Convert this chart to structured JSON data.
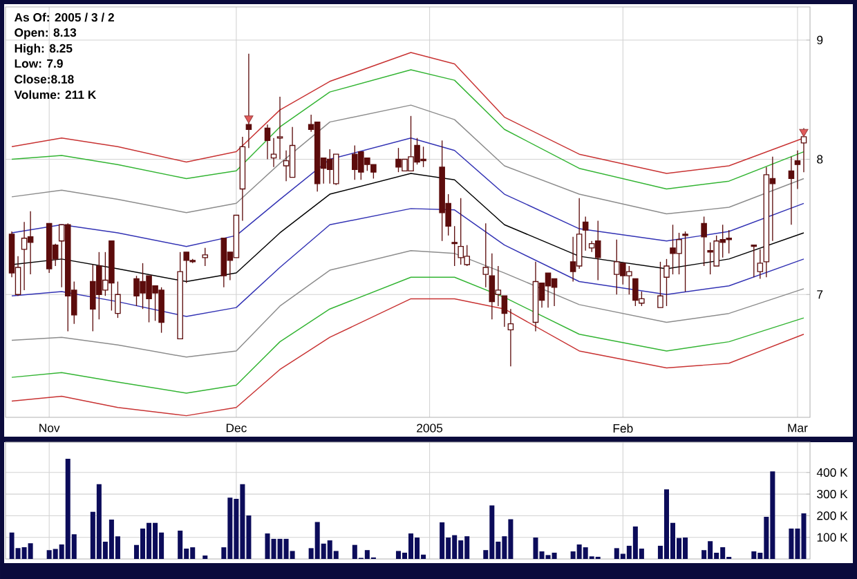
{
  "chart_data": [
    {
      "type": "candlestick",
      "log": "y",
      "grid": true,
      "xlim": [
        "2004-10-25",
        "2005-03-03"
      ],
      "xticks": [
        {
          "value": "2004-11-01",
          "label": "Nov"
        },
        {
          "value": "2004-12-01",
          "label": "Dec"
        },
        {
          "value": "2005-01-01",
          "label": "2005"
        },
        {
          "value": "2005-02-01",
          "label": "Feb"
        },
        {
          "value": "2005-03-01",
          "label": "Mar"
        }
      ],
      "ylim": [
        6.2,
        9.3
      ],
      "yticks": [
        7,
        8,
        9
      ],
      "annotations": [
        "As Of: 2005 / 3 / 2",
        "Open: 8.13",
        "High: 8.25",
        "Low: 7.9",
        "Close:8.18",
        "Volume: 211 K"
      ],
      "series": [
        {
          "type": "line",
          "color": "#c83232",
          "x": [
            "2004-10-26",
            "2004-11-03",
            "2004-11-12",
            "2004-11-23",
            "2004-12-01",
            "2004-12-08",
            "2004-12-16",
            "2004-12-29",
            "2005-01-05",
            "2005-01-13",
            "2005-01-25",
            "2005-02-08",
            "2005-02-18",
            "2005-03-02"
          ],
          "values": [
            8.1,
            8.17,
            8.1,
            7.98,
            8.06,
            8.4,
            8.64,
            8.89,
            8.79,
            8.34,
            8.04,
            7.89,
            7.95,
            8.17
          ]
        },
        {
          "type": "line",
          "color": "#32b432",
          "x": [
            "2004-10-26",
            "2004-11-03",
            "2004-11-12",
            "2004-11-23",
            "2004-12-01",
            "2004-12-08",
            "2004-12-16",
            "2004-12-29",
            "2005-01-05",
            "2005-01-13",
            "2005-01-25",
            "2005-02-08",
            "2005-02-18",
            "2005-03-02"
          ],
          "values": [
            8.0,
            8.03,
            7.96,
            7.85,
            7.91,
            8.26,
            8.55,
            8.74,
            8.65,
            8.24,
            7.93,
            7.77,
            7.83,
            8.06
          ]
        },
        {
          "type": "line",
          "color": "#8c8c8c",
          "x": [
            "2004-10-26",
            "2004-11-03",
            "2004-11-12",
            "2004-11-23",
            "2004-12-01",
            "2004-12-08",
            "2004-12-16",
            "2004-12-29",
            "2005-01-05",
            "2005-01-13",
            "2005-01-25",
            "2005-02-08",
            "2005-02-18",
            "2005-03-02"
          ],
          "values": [
            7.71,
            7.76,
            7.69,
            7.59,
            7.66,
            7.97,
            8.3,
            8.44,
            8.32,
            7.95,
            7.73,
            7.58,
            7.63,
            7.85
          ]
        },
        {
          "type": "line",
          "color": "#3232b4",
          "x": [
            "2004-10-26",
            "2004-11-03",
            "2004-11-12",
            "2004-11-23",
            "2004-12-01",
            "2004-12-08",
            "2004-12-16",
            "2004-12-29",
            "2005-01-05",
            "2005-01-13",
            "2005-01-25",
            "2005-02-08",
            "2005-02-18",
            "2005-03-02"
          ],
          "values": [
            7.44,
            7.5,
            7.44,
            7.34,
            7.42,
            7.69,
            8.0,
            8.17,
            8.07,
            7.73,
            7.47,
            7.38,
            7.45,
            7.66
          ]
        },
        {
          "type": "line",
          "color": "#000000",
          "x": [
            "2004-10-26",
            "2004-11-03",
            "2004-11-12",
            "2004-11-23",
            "2004-12-01",
            "2004-12-08",
            "2004-12-16",
            "2004-12-29",
            "2005-01-05",
            "2005-01-13",
            "2005-01-25",
            "2005-02-08",
            "2005-02-18",
            "2005-03-02"
          ],
          "values": [
            7.21,
            7.25,
            7.18,
            7.09,
            7.15,
            7.44,
            7.73,
            7.89,
            7.84,
            7.5,
            7.27,
            7.18,
            7.25,
            7.44
          ]
        },
        {
          "type": "line",
          "color": "#3232b4",
          "x": [
            "2004-10-26",
            "2004-11-03",
            "2004-11-12",
            "2004-11-23",
            "2004-12-01",
            "2004-12-08",
            "2004-12-16",
            "2004-12-29",
            "2005-01-05",
            "2005-01-13",
            "2005-01-25",
            "2005-02-08",
            "2005-02-18",
            "2005-03-02"
          ],
          "values": [
            6.99,
            7.02,
            6.95,
            6.85,
            6.91,
            7.19,
            7.5,
            7.62,
            7.61,
            7.35,
            7.09,
            7.0,
            7.06,
            7.25
          ]
        },
        {
          "type": "line",
          "color": "#8c8c8c",
          "x": [
            "2004-10-26",
            "2004-11-03",
            "2004-11-12",
            "2004-11-23",
            "2004-12-01",
            "2004-12-08",
            "2004-12-16",
            "2004-12-29",
            "2005-01-05",
            "2005-01-13",
            "2005-01-25",
            "2005-02-08",
            "2005-02-18",
            "2005-03-02"
          ],
          "values": [
            6.69,
            6.71,
            6.66,
            6.58,
            6.62,
            6.92,
            7.17,
            7.31,
            7.29,
            7.15,
            6.93,
            6.81,
            6.87,
            7.04
          ]
        },
        {
          "type": "line",
          "color": "#32b432",
          "x": [
            "2004-10-26",
            "2004-11-03",
            "2004-11-12",
            "2004-11-23",
            "2004-12-01",
            "2004-12-08",
            "2004-12-16",
            "2004-12-29",
            "2005-01-05",
            "2005-01-13",
            "2005-01-25",
            "2005-02-08",
            "2005-02-18",
            "2005-03-02"
          ],
          "values": [
            6.45,
            6.48,
            6.42,
            6.35,
            6.4,
            6.68,
            6.9,
            7.12,
            7.12,
            6.98,
            6.73,
            6.62,
            6.68,
            6.84
          ]
        },
        {
          "type": "line",
          "color": "#c83232",
          "x": [
            "2004-10-26",
            "2004-11-03",
            "2004-11-12",
            "2004-11-23",
            "2004-12-01",
            "2004-12-08",
            "2004-12-16",
            "2004-12-29",
            "2005-01-05",
            "2005-01-13",
            "2005-01-25",
            "2005-02-08",
            "2005-02-18",
            "2005-03-02"
          ],
          "values": [
            6.3,
            6.33,
            6.26,
            6.21,
            6.26,
            6.5,
            6.71,
            6.97,
            6.97,
            6.9,
            6.62,
            6.51,
            6.54,
            6.73
          ]
        },
        {
          "type": "scatter",
          "color": "#e05a5a",
          "marker": "triangle",
          "x": [
            "2004-12-03",
            "2005-03-02"
          ],
          "values": [
            8.33,
            8.22
          ]
        },
        {
          "type": "candlestick",
          "color": "#5c0c0c",
          "x": [
            "2004-10-26",
            "2004-10-27",
            "2004-10-28",
            "2004-10-29",
            "2004-11-01",
            "2004-11-02",
            "2004-11-03",
            "2004-11-04",
            "2004-11-05",
            "2004-11-08",
            "2004-11-09",
            "2004-11-10",
            "2004-11-11",
            "2004-11-12",
            "2004-11-15",
            "2004-11-16",
            "2004-11-17",
            "2004-11-18",
            "2004-11-19",
            "2004-11-22",
            "2004-11-23",
            "2004-11-24",
            "2004-11-26",
            "2004-11-29",
            "2004-11-30",
            "2004-12-01",
            "2004-12-02",
            "2004-12-03",
            "2004-12-06",
            "2004-12-07",
            "2004-12-08",
            "2004-12-09",
            "2004-12-10",
            "2004-12-13",
            "2004-12-14",
            "2004-12-15",
            "2004-12-16",
            "2004-12-17",
            "2004-12-20",
            "2004-12-21",
            "2004-12-22",
            "2004-12-23",
            "2004-12-27",
            "2004-12-28",
            "2004-12-29",
            "2004-12-30",
            "2004-12-31",
            "2005-01-03",
            "2005-01-04",
            "2005-01-05",
            "2005-01-06",
            "2005-01-07",
            "2005-01-10",
            "2005-01-11",
            "2005-01-12",
            "2005-01-13",
            "2005-01-14",
            "2005-01-18",
            "2005-01-19",
            "2005-01-20",
            "2005-01-21",
            "2005-01-24",
            "2005-01-25",
            "2005-01-26",
            "2005-01-27",
            "2005-01-28",
            "2005-01-31",
            "2005-02-01",
            "2005-02-02",
            "2005-02-03",
            "2005-02-04",
            "2005-02-07",
            "2005-02-08",
            "2005-02-09",
            "2005-02-10",
            "2005-02-11",
            "2005-02-14",
            "2005-02-15",
            "2005-02-16",
            "2005-02-17",
            "2005-02-18",
            "2005-02-22",
            "2005-02-23",
            "2005-02-24",
            "2005-02-25",
            "2005-02-28",
            "2005-03-01",
            "2005-03-02"
          ],
          "ohlc": [
            [
              7.43,
              7.45,
              7.12,
              7.15
            ],
            [
              7.0,
              7.27,
              6.99,
              7.19
            ],
            [
              7.32,
              7.52,
              7.03,
              7.4
            ],
            [
              7.41,
              7.6,
              7.14,
              7.37
            ],
            [
              7.51,
              7.51,
              7.15,
              7.18
            ],
            [
              7.35,
              7.36,
              7.2,
              7.25
            ],
            [
              7.38,
              7.5,
              7.05,
              7.5
            ],
            [
              7.5,
              7.51,
              6.75,
              6.99
            ],
            [
              7.03,
              7.09,
              6.8,
              6.86
            ],
            [
              7.09,
              7.21,
              6.75,
              6.9
            ],
            [
              7.2,
              7.3,
              6.83,
              7.0
            ],
            [
              7.03,
              7.3,
              6.99,
              7.1
            ],
            [
              7.38,
              7.38,
              6.89,
              7.08
            ],
            [
              6.87,
              7.09,
              6.84,
              7.0
            ],
            [
              7.11,
              7.13,
              6.92,
              6.99
            ],
            [
              7.09,
              7.22,
              6.9,
              7.01
            ],
            [
              7.13,
              7.13,
              6.81,
              6.97
            ],
            [
              7.06,
              7.06,
              6.82,
              7.01
            ],
            [
              7.03,
              7.05,
              6.74,
              6.81
            ],
            [
              6.7,
              7.3,
              6.7,
              7.16
            ],
            [
              7.3,
              7.3,
              7.08,
              7.24
            ],
            [
              7.24,
              7.25,
              7.22,
              7.23
            ],
            [
              7.26,
              7.33,
              7.2,
              7.28
            ],
            [
              7.4,
              7.4,
              7.05,
              7.13
            ],
            [
              7.3,
              7.3,
              7.1,
              7.24
            ],
            [
              7.26,
              7.57,
              7.26,
              7.57
            ],
            [
              7.77,
              8.18,
              7.53,
              8.1
            ],
            [
              8.28,
              8.88,
              8.09,
              8.24
            ],
            [
              8.25,
              8.28,
              8.0,
              8.15
            ],
            [
              8.01,
              8.17,
              7.94,
              8.04
            ],
            [
              8.17,
              8.51,
              8.0,
              8.18
            ],
            [
              7.95,
              8.07,
              7.83,
              7.99
            ],
            [
              7.86,
              8.26,
              7.86,
              8.11
            ],
            [
              8.28,
              8.36,
              8.22,
              8.24
            ],
            [
              8.3,
              8.3,
              7.75,
              7.81
            ],
            [
              8.01,
              8.01,
              7.81,
              7.93
            ],
            [
              8.0,
              8.08,
              7.81,
              7.92
            ],
            [
              7.81,
              8.04,
              7.8,
              8.04
            ],
            [
              8.04,
              8.11,
              7.84,
              7.92
            ],
            [
              8.06,
              8.06,
              7.84,
              7.9
            ],
            [
              8.01,
              8.01,
              7.91,
              7.96
            ],
            [
              7.96,
              7.96,
              7.85,
              7.9
            ],
            [
              8.0,
              8.09,
              7.9,
              7.94
            ],
            [
              7.91,
              8.0,
              7.91,
              8.0
            ],
            [
              7.91,
              8.35,
              7.91,
              8.02
            ],
            [
              8.11,
              8.17,
              7.96,
              7.98
            ],
            [
              8.0,
              8.1,
              7.94,
              7.99
            ],
            [
              7.94,
              8.15,
              7.38,
              7.59
            ],
            [
              7.66,
              7.73,
              7.42,
              7.49
            ],
            [
              7.37,
              7.49,
              7.2,
              7.36
            ],
            [
              7.26,
              7.7,
              7.21,
              7.34
            ],
            [
              7.21,
              7.35,
              7.2,
              7.27
            ],
            [
              7.14,
              7.51,
              7.05,
              7.19
            ],
            [
              7.13,
              7.29,
              6.83,
              6.95
            ],
            [
              7.0,
              7.2,
              6.92,
              7.03
            ],
            [
              6.99,
              6.99,
              6.78,
              6.87
            ],
            [
              6.76,
              6.9,
              6.52,
              6.8
            ],
            [
              6.81,
              7.23,
              6.75,
              7.09
            ],
            [
              7.08,
              7.08,
              6.91,
              6.96
            ],
            [
              7.15,
              7.15,
              6.91,
              7.06
            ],
            [
              7.11,
              7.11,
              6.92,
              7.05
            ],
            [
              7.23,
              7.41,
              7.09,
              7.16
            ],
            [
              7.2,
              7.7,
              7.18,
              7.43
            ],
            [
              7.52,
              7.56,
              7.31,
              7.46
            ],
            [
              7.33,
              7.38,
              7.3,
              7.36
            ],
            [
              7.38,
              7.53,
              7.1,
              7.26
            ],
            [
              7.14,
              7.39,
              7.0,
              7.23
            ],
            [
              7.22,
              7.22,
              7.07,
              7.13
            ],
            [
              7.13,
              7.2,
              7.0,
              7.16
            ],
            [
              7.11,
              7.11,
              6.92,
              6.96
            ],
            [
              6.94,
              7.02,
              6.92,
              6.97
            ],
            [
              6.91,
              7.23,
              6.91,
              6.99
            ],
            [
              7.12,
              7.25,
              6.92,
              7.2
            ],
            [
              7.33,
              7.5,
              7.14,
              7.29
            ],
            [
              7.29,
              7.44,
              7.14,
              7.39
            ],
            [
              7.43,
              7.45,
              7.02,
              7.42
            ],
            [
              7.51,
              7.56,
              7.2,
              7.41
            ],
            [
              7.31,
              7.37,
              7.14,
              7.3
            ],
            [
              7.2,
              7.42,
              7.2,
              7.38
            ],
            [
              7.39,
              7.5,
              7.26,
              7.37
            ],
            [
              7.4,
              7.46,
              7.29,
              7.39
            ],
            [
              7.35,
              7.35,
              7.12,
              7.34
            ],
            [
              7.16,
              7.32,
              7.11,
              7.22
            ],
            [
              7.23,
              7.94,
              7.12,
              7.88
            ],
            [
              7.85,
              8.02,
              7.38,
              7.81
            ],
            [
              7.91,
              8.02,
              7.5,
              7.85
            ],
            [
              7.99,
              8.07,
              7.77,
              7.96
            ],
            [
              8.13,
              8.25,
              7.9,
              8.18
            ]
          ]
        }
      ]
    },
    {
      "type": "bar",
      "grid": true,
      "tick_labels": "y",
      "color": "#0c0c5a",
      "xlim": [
        "2004-10-25",
        "2005-03-03"
      ],
      "xticks": [
        {
          "value": "2004-11-01",
          "label": null
        },
        {
          "value": "2004-12-01",
          "label": null
        },
        {
          "value": "2005-01-01",
          "label": null
        },
        {
          "value": "2005-02-01",
          "label": null
        },
        {
          "value": "2005-03-01",
          "label": null
        }
      ],
      "ylim": [
        0,
        540
      ],
      "yticks": [
        {
          "value": 100,
          "label": "100 K"
        },
        {
          "value": 200,
          "label": "200 K"
        },
        {
          "value": 300,
          "label": "300 K"
        },
        {
          "value": 400,
          "label": "400 K"
        }
      ],
      "x": [
        "2004-10-26",
        "2004-10-27",
        "2004-10-28",
        "2004-10-29",
        "2004-11-01",
        "2004-11-02",
        "2004-11-03",
        "2004-11-04",
        "2004-11-05",
        "2004-11-08",
        "2004-11-09",
        "2004-11-10",
        "2004-11-11",
        "2004-11-12",
        "2004-11-15",
        "2004-11-16",
        "2004-11-17",
        "2004-11-18",
        "2004-11-19",
        "2004-11-22",
        "2004-11-23",
        "2004-11-24",
        "2004-11-26",
        "2004-11-29",
        "2004-11-30",
        "2004-12-01",
        "2004-12-02",
        "2004-12-03",
        "2004-12-06",
        "2004-12-07",
        "2004-12-08",
        "2004-12-09",
        "2004-12-10",
        "2004-12-13",
        "2004-12-14",
        "2004-12-15",
        "2004-12-16",
        "2004-12-17",
        "2004-12-20",
        "2004-12-21",
        "2004-12-22",
        "2004-12-23",
        "2004-12-27",
        "2004-12-28",
        "2004-12-29",
        "2004-12-30",
        "2004-12-31",
        "2005-01-03",
        "2005-01-04",
        "2005-01-05",
        "2005-01-06",
        "2005-01-07",
        "2005-01-10",
        "2005-01-11",
        "2005-01-12",
        "2005-01-13",
        "2005-01-14",
        "2005-01-18",
        "2005-01-19",
        "2005-01-20",
        "2005-01-21",
        "2005-01-24",
        "2005-01-25",
        "2005-01-26",
        "2005-01-27",
        "2005-01-28",
        "2005-01-31",
        "2005-02-01",
        "2005-02-02",
        "2005-02-03",
        "2005-02-04",
        "2005-02-07",
        "2005-02-08",
        "2005-02-09",
        "2005-02-10",
        "2005-02-11",
        "2005-02-14",
        "2005-02-15",
        "2005-02-16",
        "2005-02-17",
        "2005-02-18",
        "2005-02-22",
        "2005-02-23",
        "2005-02-24",
        "2005-02-25",
        "2005-02-28",
        "2005-03-01",
        "2005-03-02"
      ],
      "values": [
        122,
        50,
        54,
        73,
        41,
        46,
        67,
        463,
        114,
        218,
        346,
        80,
        182,
        105,
        65,
        141,
        167,
        167,
        122,
        131,
        48,
        54,
        16,
        54,
        284,
        278,
        346,
        201,
        118,
        93,
        93,
        93,
        37,
        50,
        171,
        71,
        86,
        37,
        65,
        5,
        41,
        7,
        37,
        29,
        118,
        99,
        20,
        169,
        99,
        110,
        86,
        105,
        41,
        248,
        80,
        105,
        184,
        99,
        35,
        18,
        29,
        35,
        67,
        54,
        12,
        10,
        50,
        24,
        61,
        150,
        48,
        61,
        322,
        167,
        97,
        99,
        41,
        82,
        29,
        54,
        10,
        35,
        29,
        195,
        405,
        141,
        141,
        211
      ]
    }
  ]
}
